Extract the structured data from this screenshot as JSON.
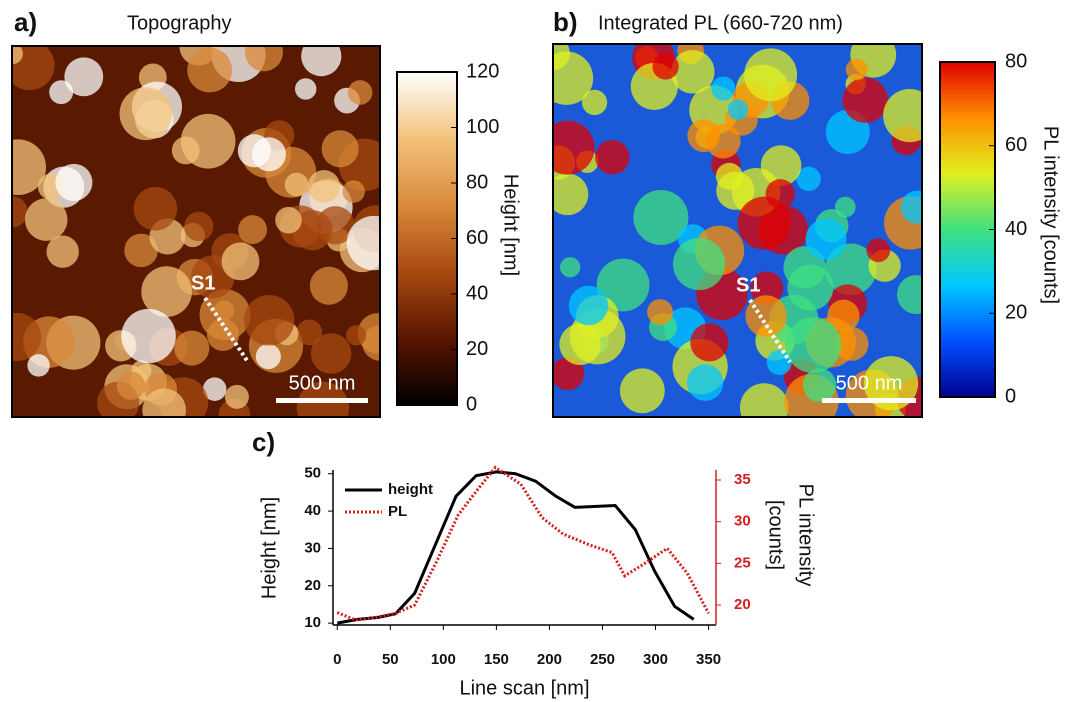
{
  "chart_data": [
    {
      "type": "heatmap",
      "panel_label": "a)",
      "title": "Topography",
      "colorbar_label": "Height [nm]",
      "clim": [
        0,
        120
      ],
      "cticks": [
        0,
        20,
        40,
        60,
        80,
        100,
        120
      ],
      "colormap": [
        "#000000",
        "#5a1500",
        "#a84a10",
        "#d98a3a",
        "#f2c27a",
        "#ffffff"
      ],
      "background": "#5a1a02",
      "annotations": [
        "S1",
        "500 nm"
      ]
    },
    {
      "type": "heatmap",
      "panel_label": "b)",
      "title": "Integrated PL (660-720 nm)",
      "colorbar_label": "PL intensity [counts]",
      "clim": [
        0,
        80
      ],
      "cticks": [
        0,
        20,
        40,
        60,
        80
      ],
      "colormap": [
        "#00008f",
        "#0050ff",
        "#00c8ff",
        "#40e080",
        "#e0f020",
        "#ff9000",
        "#e00000"
      ],
      "background": "#1a5ad8",
      "annotations": [
        "S1",
        "500 nm"
      ]
    },
    {
      "type": "line",
      "panel_label": "c)",
      "xlabel": "Line scan [nm]",
      "ylabel": "Height [nm]",
      "y2label": [
        "PL intensity",
        "[counts]"
      ],
      "xlim": [
        -4,
        357
      ],
      "xticks": [
        0,
        50,
        100,
        150,
        200,
        250,
        300,
        350
      ],
      "ylim": [
        9.5,
        51
      ],
      "yticks": [
        10,
        20,
        30,
        40,
        50
      ],
      "y2lim": [
        17.6,
        36.2
      ],
      "y2ticks": [
        20,
        25,
        30,
        35
      ],
      "y2color": "#d42020",
      "legend": "upper left",
      "series": [
        {
          "name": "height",
          "color": "#000000",
          "line_style": "solid",
          "x": [
            0,
            19,
            38,
            55,
            73,
            94,
            112,
            131,
            150,
            168,
            187,
            206,
            224,
            262,
            281,
            299,
            318,
            336
          ],
          "values": [
            10,
            11,
            11.5,
            12.5,
            18,
            32,
            44,
            49.5,
            50.5,
            50,
            48,
            44,
            41,
            41.5,
            35,
            24,
            14.5,
            11
          ]
        },
        {
          "name": "PL",
          "color": "#d42020",
          "line_style": "dotted",
          "axis": "y2",
          "x": [
            0,
            17,
            36,
            55,
            73,
            94,
            114,
            132,
            149,
            173,
            193,
            213,
            238,
            259,
            271,
            290,
            311,
            330,
            350
          ],
          "values": [
            19.1,
            18.2,
            18.5,
            19,
            20,
            25.3,
            30.8,
            33.8,
            36.5,
            34.5,
            30.5,
            28.5,
            27.2,
            26.3,
            23.5,
            25,
            26.8,
            23.8,
            19
          ]
        }
      ]
    }
  ]
}
